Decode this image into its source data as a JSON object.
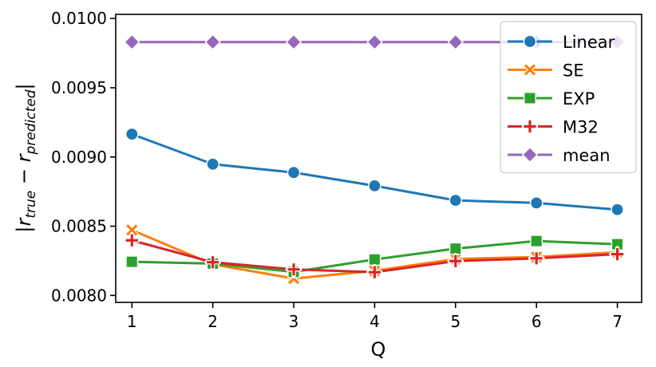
{
  "chart_data": {
    "type": "line",
    "xlabel": "Q",
    "ylabel": "|r_true − r_predicted|",
    "ylabel_parts": {
      "bar": "|",
      "r1": "r",
      "sub1": "true",
      "minus": " − ",
      "r2": "r",
      "sub2": "predicted"
    },
    "x": [
      1,
      2,
      3,
      4,
      5,
      6,
      7
    ],
    "xlim": [
      0.8,
      7.3
    ],
    "ylim": [
      0.00795,
      0.01003
    ],
    "x_ticks": [
      1,
      2,
      3,
      4,
      5,
      6,
      7
    ],
    "y_ticks": [
      0.008,
      0.0085,
      0.009,
      0.0095,
      0.01
    ],
    "y_tick_labels": [
      "0.0080",
      "0.0085",
      "0.0090",
      "0.0095",
      "0.0100"
    ],
    "grid": false,
    "legend_position": "top-right",
    "series": [
      {
        "name": "Linear",
        "color": "#1f77b4",
        "marker": "circle",
        "values": [
          0.009165,
          0.008948,
          0.008888,
          0.008792,
          0.008687,
          0.008668,
          0.00862
        ]
      },
      {
        "name": "SE",
        "color": "#ff7f0e",
        "marker": "x",
        "values": [
          0.008472,
          0.008225,
          0.008122,
          0.008178,
          0.008263,
          0.008278,
          0.008312
        ]
      },
      {
        "name": "EXP",
        "color": "#2ca02c",
        "marker": "square",
        "values": [
          0.008243,
          0.00823,
          0.00817,
          0.00826,
          0.008338,
          0.008393,
          0.00837
        ]
      },
      {
        "name": "M32",
        "color": "#d62728",
        "marker": "plus",
        "values": [
          0.008398,
          0.00824,
          0.008188,
          0.008168,
          0.008248,
          0.008268,
          0.008298
        ]
      },
      {
        "name": "mean",
        "color": "#9467bd",
        "marker": "diamond",
        "values": [
          0.00983,
          0.00983,
          0.00983,
          0.00983,
          0.00983,
          0.00983,
          0.00983
        ]
      }
    ]
  }
}
